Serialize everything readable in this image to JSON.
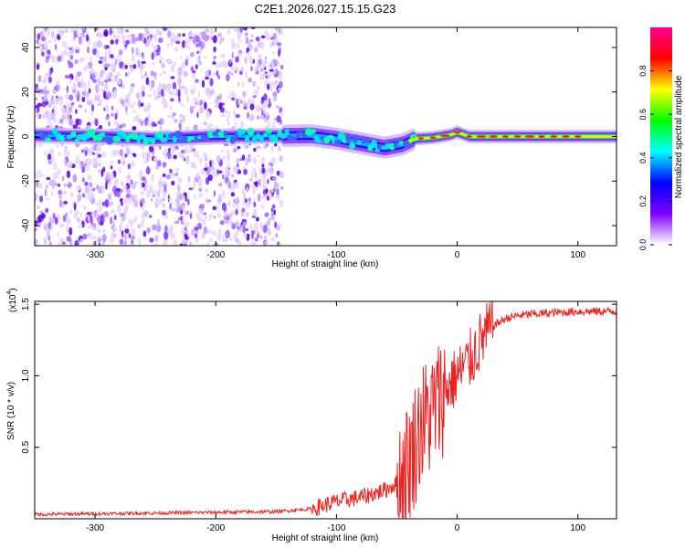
{
  "chart_data": [
    {
      "type": "heatmap",
      "title": "C2E1.2026.027.15.15.G23",
      "xlabel": "Height of straight line (km)",
      "ylabel": "Frequency (Hz)",
      "xlim": [
        -350,
        132
      ],
      "ylim": [
        -49,
        49
      ],
      "xticks": [
        -300,
        -200,
        -100,
        0,
        100
      ],
      "yticks": [
        -40,
        -20,
        0,
        20,
        40
      ],
      "colorbar": {
        "label": "Normalized spectral amplitude",
        "range": [
          0.0,
          1.0
        ],
        "ticks": [
          0.0,
          0.2,
          0.4,
          0.6,
          0.8
        ],
        "colors": [
          "#ffffff",
          "#7f00ff",
          "#0000ff",
          "#00ffff",
          "#00ff00",
          "#ffff00",
          "#ff0000",
          "#ff0090"
        ]
      },
      "ridge": {
        "x": [
          -350,
          -300,
          -250,
          -200,
          -150,
          -120,
          -100,
          -80,
          -60,
          -45,
          -35,
          -20,
          -5,
          0,
          10,
          50,
          132
        ],
        "y": [
          0.5,
          0.0,
          -1.0,
          0.0,
          0.3,
          0.5,
          -1.0,
          -3.0,
          -5.0,
          -3.5,
          -1.0,
          -0.5,
          0.8,
          2.0,
          0.0,
          0.0,
          0.0
        ]
      },
      "noise_extent_x": [
        -350,
        -145
      ]
    },
    {
      "type": "line",
      "title": "",
      "xlabel": "Height of straight line (km)",
      "ylabel": "SNR (10 * v/v)",
      "y_multiplier": "(x10",
      "y_multiplier_exp": "4",
      "y_multiplier_close": ")",
      "xlim": [
        -350,
        132
      ],
      "ylim": [
        0.0,
        1.52
      ],
      "xticks": [
        -300,
        -200,
        -100,
        0,
        100
      ],
      "yticks": [
        0.5,
        1.0,
        1.5
      ],
      "series": [
        {
          "name": "SNR",
          "color": "#ee2222",
          "x": [
            -350,
            -300,
            -250,
            -200,
            -150,
            -120,
            -100,
            -80,
            -60,
            -50,
            -40,
            -30,
            -20,
            -10,
            0,
            10,
            20,
            30,
            40,
            50,
            60,
            80,
            100,
            132
          ],
          "y": [
            0.03,
            0.035,
            0.04,
            0.045,
            0.05,
            0.07,
            0.12,
            0.15,
            0.2,
            0.25,
            0.4,
            0.65,
            0.75,
            0.9,
            1.0,
            1.1,
            1.25,
            1.35,
            1.4,
            1.42,
            1.43,
            1.44,
            1.45,
            1.45
          ]
        }
      ]
    }
  ]
}
